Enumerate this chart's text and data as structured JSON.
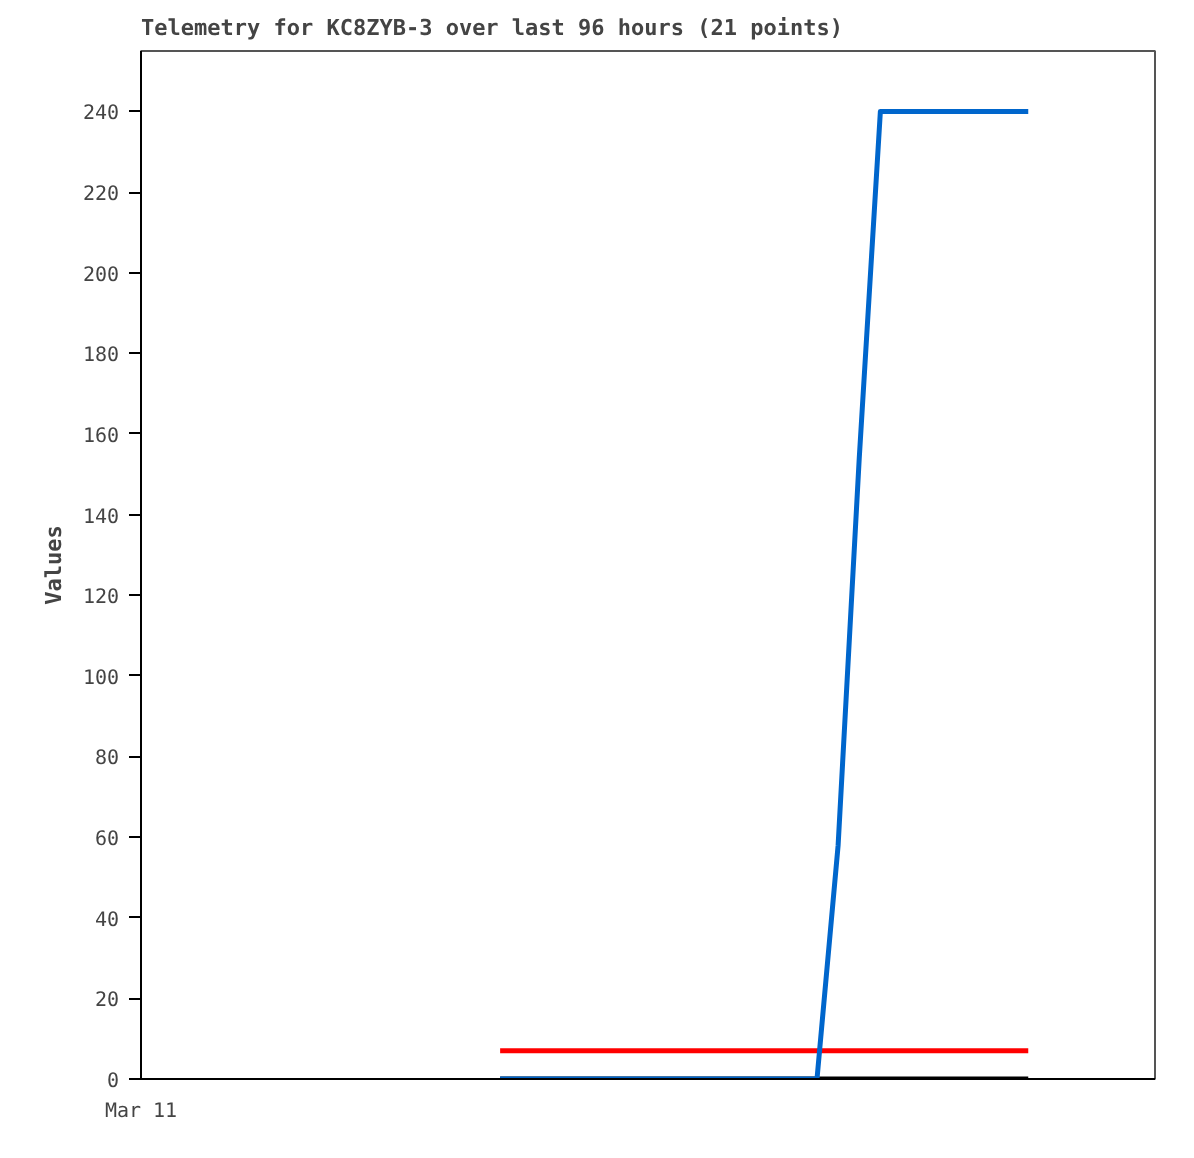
{
  "chart_data": {
    "type": "line",
    "title": "Telemetry for KC8ZYB-3 over last 96 hours (21 points)",
    "ylabel": "Values",
    "categories": [
      "Mar 11",
      null,
      null,
      null,
      null,
      null,
      null,
      null,
      null,
      null,
      null,
      null,
      null,
      null,
      null,
      null,
      null,
      null,
      null,
      null,
      null,
      null,
      null,
      null,
      null,
      null,
      null,
      null,
      null,
      null,
      null,
      null,
      null,
      null,
      null,
      null,
      null,
      null,
      null,
      null,
      null,
      null,
      null,
      null,
      null,
      null,
      null,
      null,
      null
    ],
    "ylim": [
      0,
      255
    ],
    "yticks": [
      0,
      20,
      40,
      60,
      80,
      100,
      120,
      140,
      160,
      180,
      200,
      220,
      240
    ],
    "grid": false,
    "marker": "none",
    "line_style": "solid",
    "series": [
      {
        "color": "#ff0000",
        "values": [
          null,
          null,
          null,
          null,
          null,
          null,
          null,
          null,
          null,
          null,
          null,
          null,
          null,
          null,
          null,
          null,
          null,
          7,
          7,
          7,
          7,
          7,
          7,
          7,
          7,
          7,
          7,
          7,
          7,
          7,
          7,
          7,
          7,
          7,
          7,
          7,
          7,
          7,
          7,
          7,
          7,
          7,
          7,
          null,
          null,
          null,
          null,
          null,
          null
        ]
      },
      {
        "color": "#000000",
        "values": [
          null,
          null,
          null,
          null,
          null,
          null,
          null,
          null,
          null,
          null,
          null,
          null,
          null,
          null,
          null,
          null,
          null,
          0,
          0,
          0,
          0,
          0,
          0,
          0,
          0,
          0,
          0,
          0,
          0,
          0,
          0,
          0,
          0,
          0,
          0,
          0,
          0,
          0,
          0,
          0,
          0,
          0,
          0,
          null,
          null,
          null,
          null,
          null,
          null
        ]
      },
      {
        "color": "#0066cc",
        "values": [
          null,
          null,
          null,
          null,
          null,
          null,
          null,
          null,
          null,
          null,
          null,
          null,
          null,
          null,
          null,
          null,
          null,
          0,
          0,
          0,
          0,
          0,
          0,
          0,
          0,
          0,
          0,
          0,
          0,
          0,
          0,
          0,
          0,
          58,
          154,
          240,
          240,
          240,
          240,
          240,
          240,
          240,
          240,
          null,
          null,
          null,
          null,
          null,
          null
        ]
      }
    ]
  }
}
